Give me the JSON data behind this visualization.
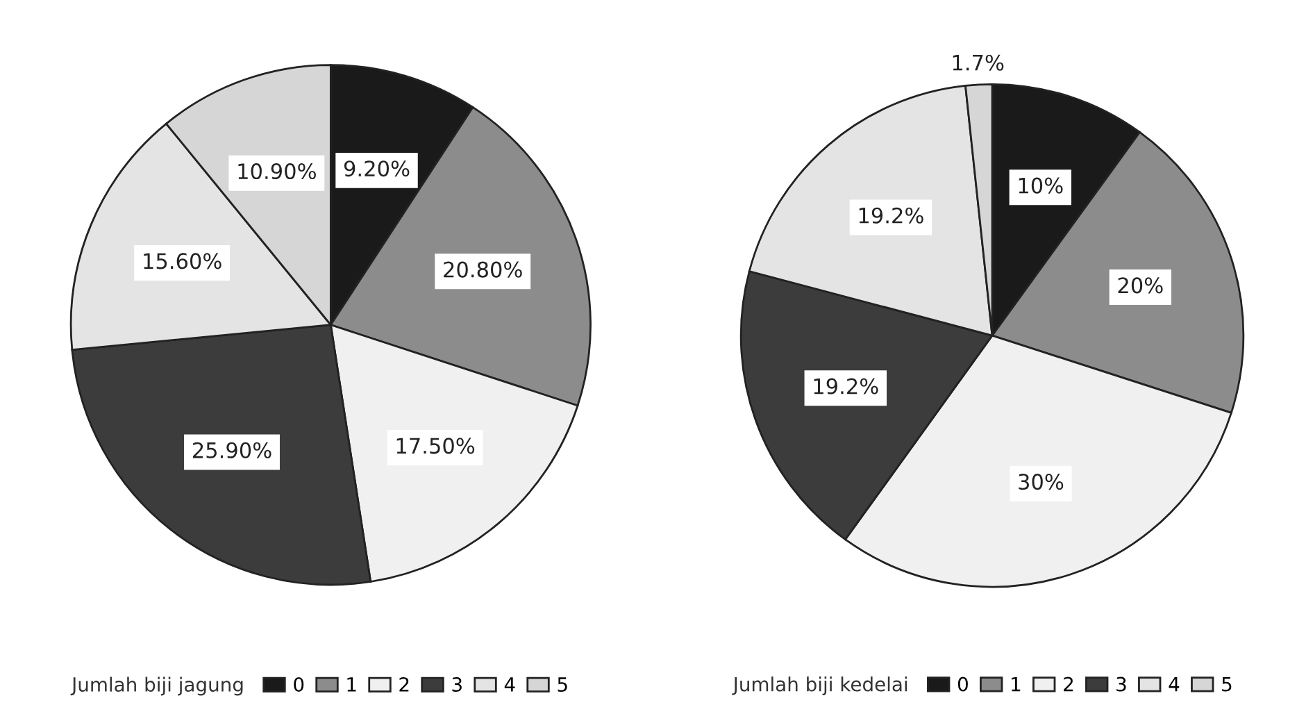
{
  "chart_data": [
    {
      "type": "pie",
      "categories": [
        "0",
        "1",
        "2",
        "3",
        "4",
        "5"
      ],
      "values": [
        9.2,
        20.8,
        17.5,
        25.9,
        15.6,
        10.9
      ],
      "colors": [
        "#1a1a1a",
        "#8c8c8c",
        "#f0f0f0",
        "#3c3c3c",
        "#e4e4e4",
        "#d6d6d6"
      ],
      "value_labels": [
        "9.20%",
        "20.80%",
        "17.50%",
        "25.90%",
        "15.60%",
        "10.90%"
      ],
      "legend_title": "Jumlah biji jagung",
      "legend": "bottom"
    },
    {
      "type": "pie",
      "categories": [
        "0",
        "1",
        "2",
        "3",
        "4",
        "5"
      ],
      "values": [
        10,
        20,
        30,
        19.2,
        19.2,
        1.7
      ],
      "colors": [
        "#1a1a1a",
        "#8c8c8c",
        "#f0f0f0",
        "#3c3c3c",
        "#e4e4e4",
        "#d6d6d6"
      ],
      "value_labels": [
        "10%",
        "20%",
        "30%",
        "19.2%",
        "19.2%",
        "1.7%"
      ],
      "legend_title": "Jumlah biji kedelai",
      "legend": "bottom"
    }
  ]
}
